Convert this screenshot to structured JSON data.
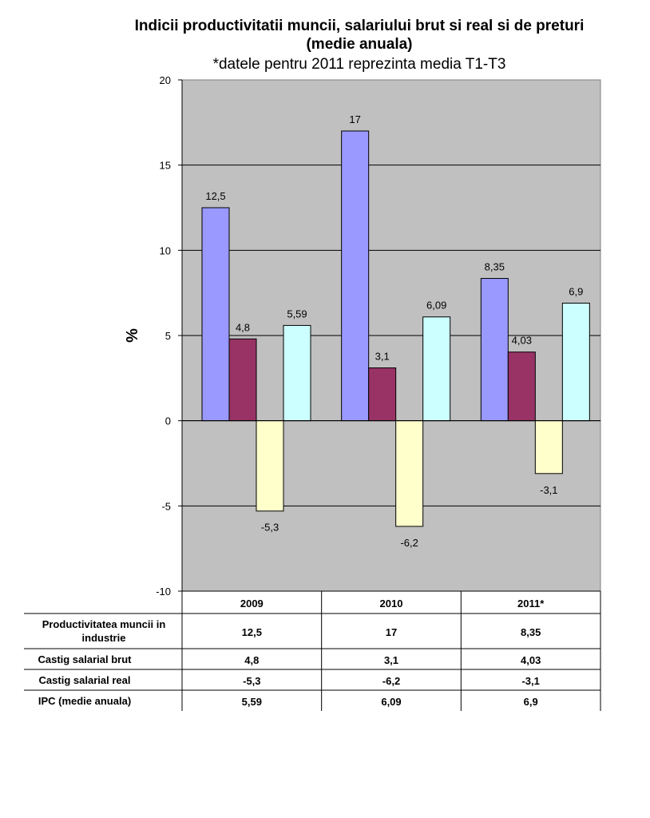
{
  "chart_data": {
    "type": "bar",
    "title": "Indicii productivitatii muncii, salariului brut si real si de preturi",
    "title_line2": "(medie anuala)",
    "subtitle": "*datele pentru 2011 reprezinta media T1-T3",
    "ylabel": "%",
    "ylim": [
      -10,
      20
    ],
    "yticks": [
      "-10",
      "-5",
      "0",
      "5",
      "10",
      "15",
      "20"
    ],
    "grid": true,
    "categories": [
      "2009",
      "2010",
      "2011*"
    ],
    "series": [
      {
        "name": "Productivitatea muncii in industrie",
        "values": [
          12.5,
          17,
          8.35
        ],
        "labels": [
          "12,5",
          "17",
          "8,35"
        ],
        "table": [
          "12,5",
          "17",
          "8,35"
        ],
        "color": "#9999ff"
      },
      {
        "name": "Castig salarial brut",
        "values": [
          4.8,
          3.1,
          4.03
        ],
        "labels": [
          "4,8",
          "3,1",
          "4,03"
        ],
        "table": [
          "4,8",
          "3,1",
          "4,03"
        ],
        "color": "#993366"
      },
      {
        "name": "Castig salarial real",
        "values": [
          -5.3,
          -6.2,
          -3.1
        ],
        "labels": [
          "-5,3",
          "-6,2",
          "-3,1"
        ],
        "table": [
          "-5,3",
          "-6,2",
          "-3,1"
        ],
        "color": "#ffffcc"
      },
      {
        "name": "IPC (medie anuala)",
        "values": [
          5.59,
          6.09,
          6.9
        ],
        "labels": [
          "5,59",
          "6,09",
          "6,9"
        ],
        "table": [
          "5,59",
          "6,09",
          "6,9"
        ],
        "color": "#ccffff"
      }
    ],
    "plot_background": "#c0c0c0"
  }
}
